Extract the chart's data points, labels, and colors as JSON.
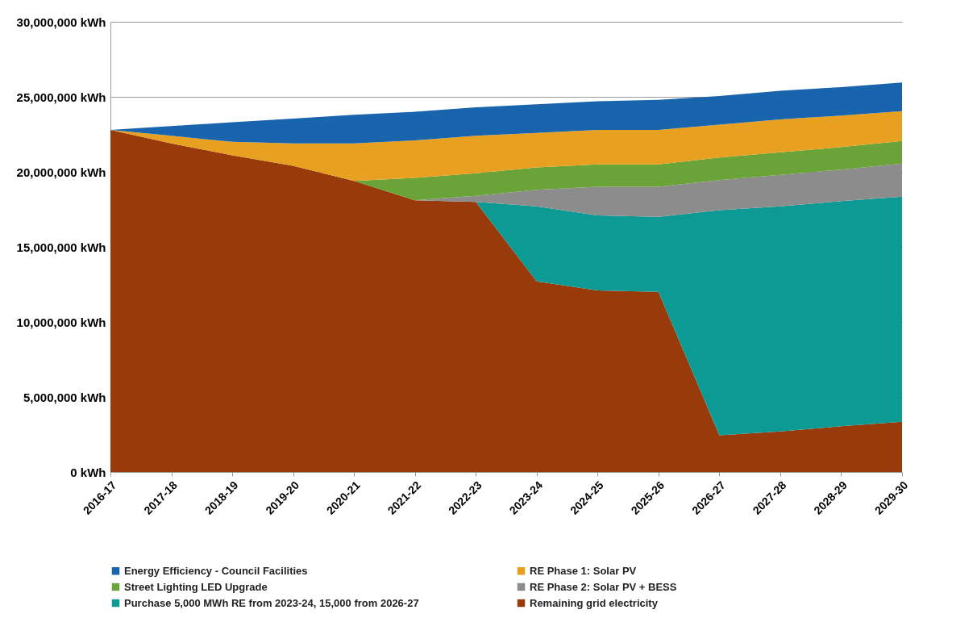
{
  "chart_data": {
    "type": "area",
    "stacked": true,
    "categories": [
      "2016-17",
      "2017-18",
      "2018-19",
      "2019-20",
      "2020-21",
      "2021-22",
      "2022-23",
      "2023-24",
      "2024-25",
      "2025-26",
      "2026-27",
      "2027-28",
      "2028-29",
      "2029-30"
    ],
    "series": [
      {
        "name": "Remaining grid electricity",
        "color": "#983a0a",
        "values": [
          22800000,
          21900000,
          21100000,
          20400000,
          19400000,
          18100000,
          18000000,
          12700000,
          12100000,
          12000000,
          2450000,
          2700000,
          3050000,
          3350000
        ]
      },
      {
        "name": "Purchase 5,000 MWh RE from 2023-24, 15,000 from 2026-27",
        "color": "#0e9a94",
        "values": [
          0,
          0,
          0,
          0,
          0,
          0,
          0,
          5000000,
          5000000,
          5000000,
          15000000,
          15000000,
          15000000,
          15000000
        ]
      },
      {
        "name": "RE Phase 2: Solar PV + BESS",
        "color": "#8c8c8c",
        "values": [
          0,
          0,
          0,
          0,
          0,
          0,
          400000,
          1100000,
          1900000,
          2000000,
          2000000,
          2100000,
          2100000,
          2200000
        ]
      },
      {
        "name": "Street Lighting LED Upgrade",
        "color": "#6aa338",
        "values": [
          0,
          0,
          0,
          0,
          0,
          1500000,
          1500000,
          1500000,
          1500000,
          1500000,
          1500000,
          1500000,
          1500000,
          1500000
        ]
      },
      {
        "name": "RE Phase 1: Solar PV",
        "color": "#e8a020",
        "values": [
          0,
          500000,
          900000,
          1500000,
          2500000,
          2500000,
          2500000,
          2300000,
          2300000,
          2300000,
          2200000,
          2200000,
          2100000,
          2000000
        ]
      },
      {
        "name": "Energy Efficiency - Council Facilities",
        "color": "#1865ad",
        "values": [
          0,
          650000,
          1300000,
          1650000,
          1900000,
          1900000,
          1900000,
          1900000,
          1900000,
          2000000,
          1900000,
          1900000,
          1900000,
          1900000
        ]
      }
    ],
    "ylim": [
      0,
      30000000
    ],
    "yticks": [
      {
        "value": 0,
        "label": "0 kWh"
      },
      {
        "value": 5000000,
        "label": "5,000,000 kWh"
      },
      {
        "value": 10000000,
        "label": "10,000,000 kWh"
      },
      {
        "value": 15000000,
        "label": "15,000,000 kWh"
      },
      {
        "value": 20000000,
        "label": "20,000,000 kWh"
      },
      {
        "value": 25000000,
        "label": "25,000,000 kWh"
      },
      {
        "value": 30000000,
        "label": "30,000,000 kWh"
      }
    ],
    "grid": "y",
    "legend": "bottom"
  }
}
